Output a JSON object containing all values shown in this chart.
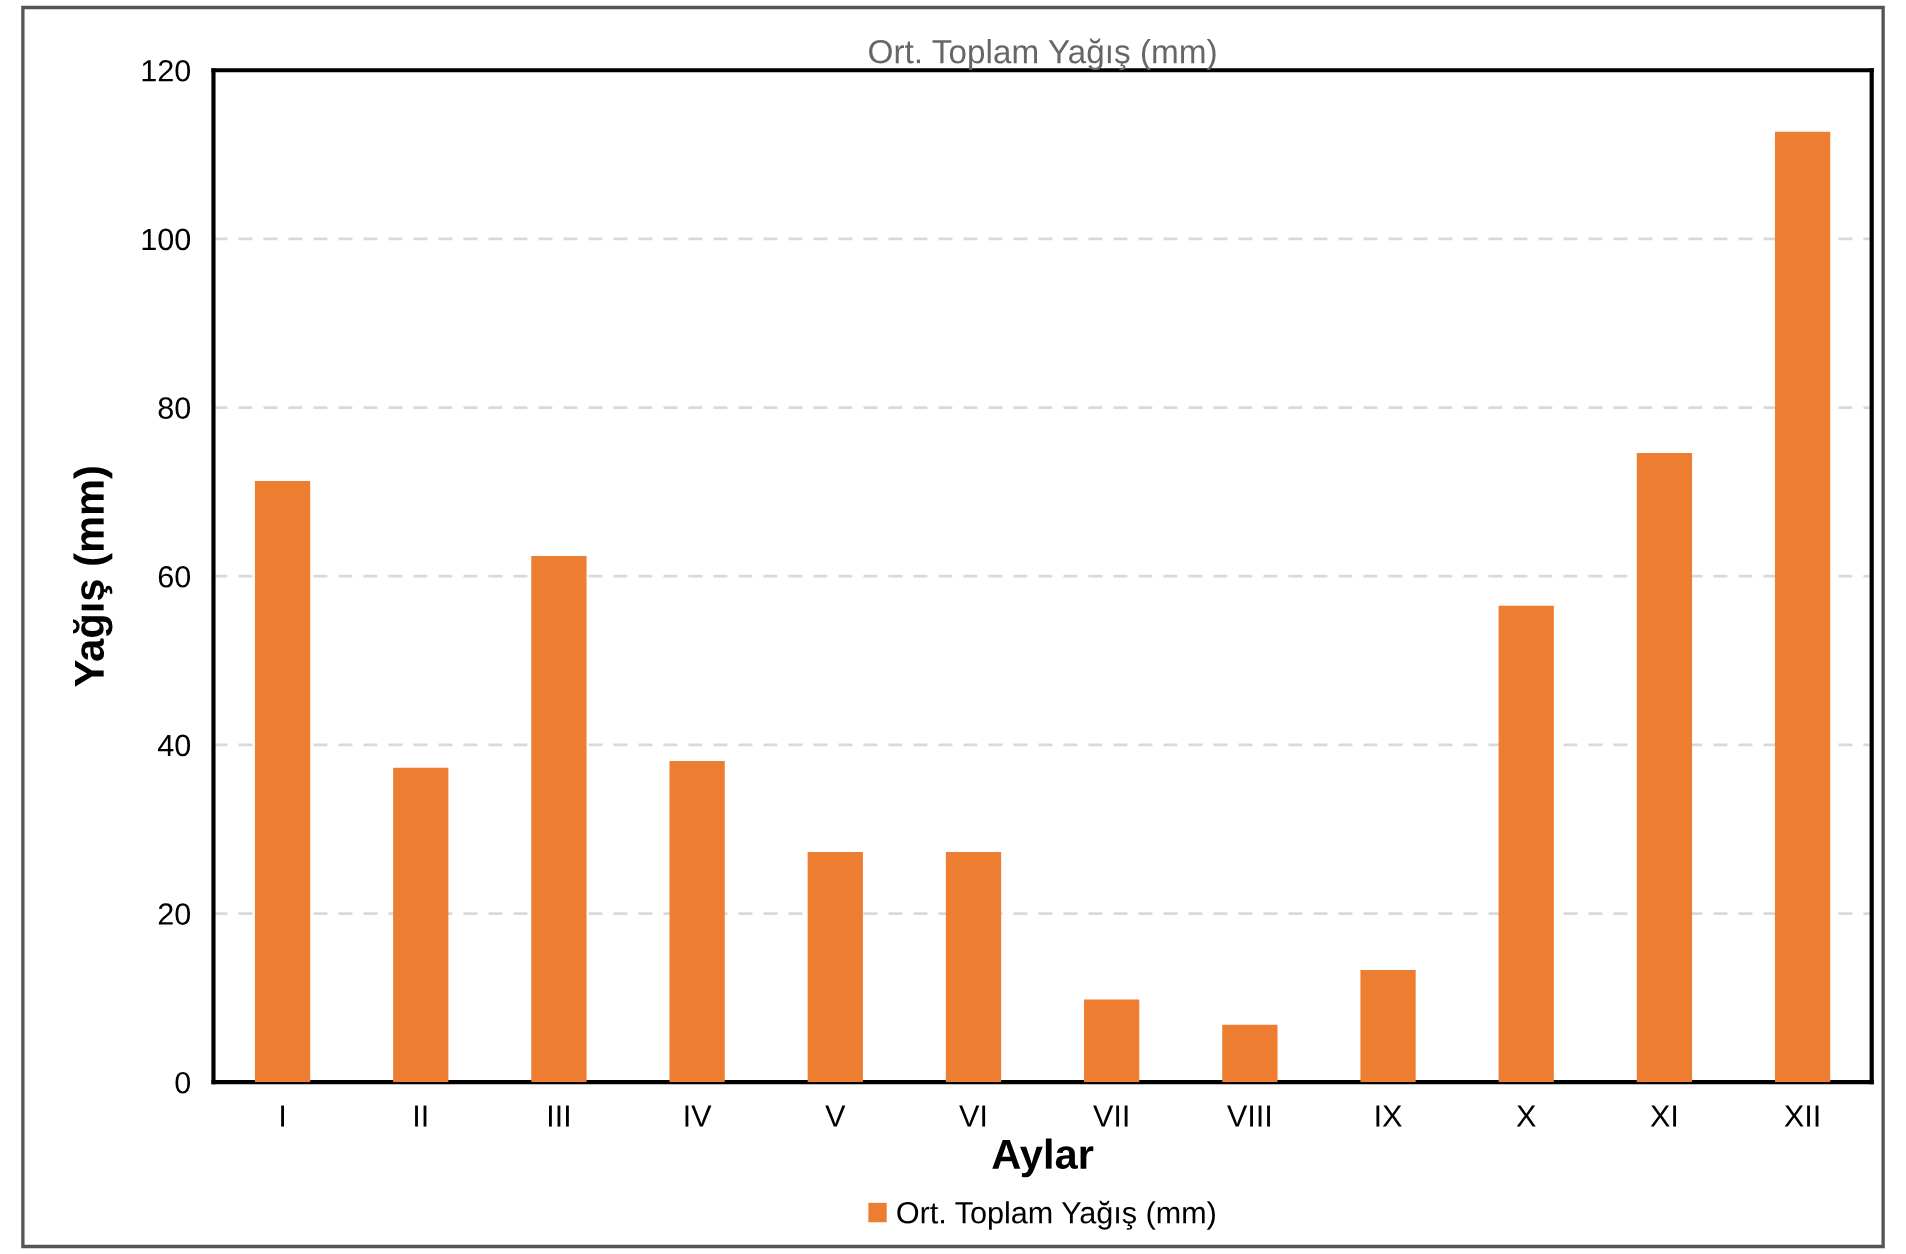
{
  "chart_data": {
    "type": "bar",
    "title": "Ort. Toplam Yağış (mm)",
    "xlabel": "Aylar",
    "ylabel": "Yağış (mm)",
    "categories": [
      "I",
      "II",
      "III",
      "IV",
      "V",
      "VI",
      "VII",
      "VIII",
      "IX",
      "X",
      "XI",
      "XII"
    ],
    "series": [
      {
        "name": "Ort. Toplam Yağış (mm)",
        "color": "#ed7d31",
        "values": [
          71.3,
          37.3,
          62.4,
          38.1,
          27.3,
          27.3,
          9.8,
          6.8,
          13.3,
          56.5,
          74.6,
          112.7
        ]
      }
    ],
    "ylim": [
      0,
      120
    ],
    "yticks": [
      0,
      20,
      40,
      60,
      80,
      100,
      120
    ],
    "grid": "y",
    "legend": "bottom"
  }
}
